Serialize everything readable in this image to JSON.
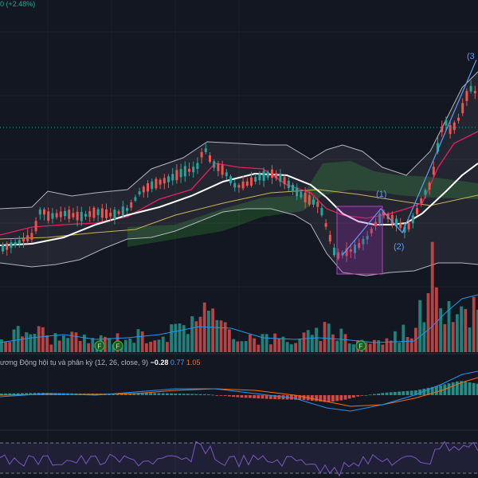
{
  "header": {
    "change_text": "0 (+2.48%)"
  },
  "wave_labels": {
    "w1": "(1)",
    "w2": "(2)",
    "w3": "(3"
  },
  "event_markers": {
    "label": "F"
  },
  "macd": {
    "legend_title": "ương Động hội tụ và phân kỳ (12, 26, close, 9)",
    "value_hist": "−0.28",
    "value_macd": "0.77",
    "value_signal": "1.05"
  },
  "colors": {
    "background": "#131722",
    "bull": "#26a69a",
    "bear": "#ef5350",
    "bollinger": "#b2b5be",
    "ma_white": "#ffffff",
    "ma_pink": "#e91e63",
    "ma_olive": "#c9b458",
    "cloud": "#2e7d32",
    "volume_ma": "#2196f3",
    "macd_line": "#2196f3",
    "signal_line": "#ff6d00",
    "highlight_box": "#9c27b0",
    "rsi_line": "#7e57c2"
  }
}
